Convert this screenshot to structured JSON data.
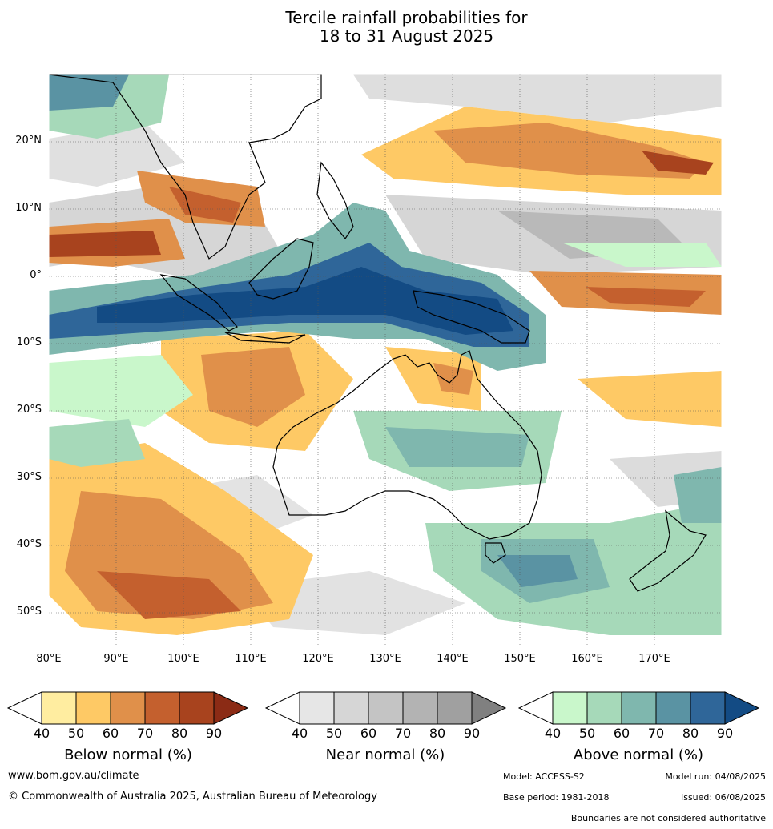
{
  "title_line1": "Tercile rainfall probabilities for",
  "title_line2": "18 to 31 August 2025",
  "lat_labels": [
    "20°N",
    "10°N",
    "0°",
    "10°S",
    "20°S",
    "30°S",
    "40°S",
    "50°S"
  ],
  "lon_labels": [
    "80°E",
    "90°E",
    "100°E",
    "110°E",
    "120°E",
    "130°E",
    "140°E",
    "150°E",
    "160°E",
    "170°E"
  ],
  "legends": [
    {
      "title": "Below normal (%)",
      "ticks": [
        "40",
        "50",
        "60",
        "70",
        "80",
        "90"
      ],
      "colors": [
        "#ffeda0",
        "#fec965",
        "#e0904a",
        "#c4602e",
        "#a8431e",
        "#8b2b15"
      ]
    },
    {
      "title": "Near normal (%)",
      "ticks": [
        "40",
        "50",
        "60",
        "70",
        "80",
        "90"
      ],
      "colors": [
        "#e6e6e6",
        "#d6d6d6",
        "#c4c4c4",
        "#b3b3b3",
        "#a0a0a0",
        "#808080"
      ]
    },
    {
      "title": "Above normal (%)",
      "ticks": [
        "40",
        "50",
        "60",
        "70",
        "80",
        "90"
      ],
      "colors": [
        "#c9f7cb",
        "#a6d9b9",
        "#7fb7ae",
        "#5a93a3",
        "#2f6699",
        "#134b84"
      ]
    }
  ],
  "footer": {
    "url": "www.bom.gov.au/climate",
    "copyright": "© Commonwealth of Australia 2025, Australian Bureau of Meteorology",
    "model": "Model: ACCESS-S2",
    "model_run": "Model run: 04/08/2025",
    "base_period": "Base period: 1981-2018",
    "issued": "Issued: 06/08/2025",
    "disclaimer": "Boundaries are not considered authoritative"
  }
}
